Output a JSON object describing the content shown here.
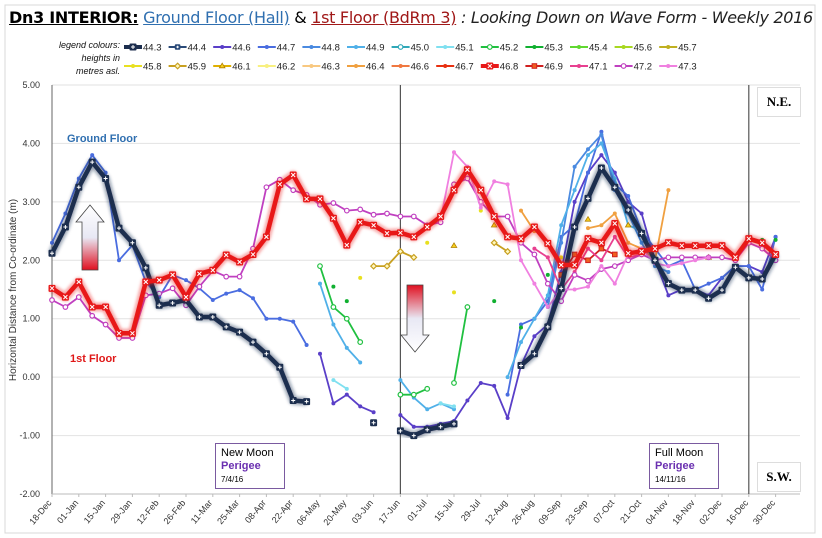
{
  "title": {
    "part1": "Dn3 INTERIOR:",
    "part2": "Ground Floor (Hall)",
    "part3": "&",
    "part4": "1st Floor (BdRm 3)",
    "part5": ": Looking Down on Wave Form - Weekly 2016"
  },
  "legend_caption": [
    "legend colours:",
    "heights in",
    "metres asl."
  ],
  "annotations": {
    "ground_floor": "Ground Floor",
    "first_floor": "1st Floor",
    "ne": "N.E.",
    "sw": "S.W.",
    "new_moon": {
      "line1": "New Moon",
      "line2": "Perigee",
      "line3": "7/4/16"
    },
    "full_moon": {
      "line1": "Full Moon",
      "line2": "Perigee",
      "line3": "14/11/16"
    }
  },
  "chart_data": {
    "type": "line",
    "title": "Dn3 INTERIOR: Ground Floor (Hall) & 1st Floor (BdRm 3) : Looking Down on Wave Form - Weekly 2016",
    "xlabel": "",
    "ylabel": "Horizontal Distance from Co-ordinate (m)",
    "ylim": [
      -2,
      5
    ],
    "yticks": [
      "5.00",
      "4.00",
      "3.00",
      "2.00",
      "1.00",
      "0.00",
      "-1.00",
      "-2.00"
    ],
    "ytick_values": [
      5,
      4,
      3,
      2,
      1,
      0,
      -1,
      -2
    ],
    "x_unit": "week index (weekly from 18-Dec-2015)",
    "xticks": [
      "18-Dec",
      "01-Jan",
      "15-Jan",
      "29-Jan",
      "12-Feb",
      "26-Feb",
      "11-Mar",
      "25-Mar",
      "08-Apr",
      "22-Apr",
      "06-May",
      "20-May",
      "03-Jun",
      "17-Jun",
      "01-Jul",
      "15-Jul",
      "29-Jul",
      "12-Aug",
      "26-Aug",
      "09-Sep",
      "23-Sep",
      "07-Oct",
      "21-Oct",
      "04-Nov",
      "18-Nov",
      "02-Dec",
      "16-Dec",
      "30-Dec"
    ],
    "xtick_step_weeks": 2,
    "weeks": 55,
    "vertical_markers_week": [
      26,
      52
    ],
    "grid": true,
    "series": [
      {
        "name": "44.3",
        "color": "#1c2e4e",
        "marker": "plus",
        "main": true,
        "values": [
          2.12,
          2.57,
          3.25,
          3.68,
          3.4,
          2.55,
          2.3,
          1.87,
          1.23,
          1.27,
          1.32,
          1.03,
          1.03,
          0.86,
          0.77,
          0.6,
          0.4,
          0.17,
          -0.4,
          -0.42,
          null,
          null,
          null,
          null,
          -0.78,
          null,
          -0.92,
          -1.0,
          -0.9,
          -0.85,
          -0.8,
          null,
          null,
          null,
          null,
          0.2,
          0.4,
          0.86,
          1.52,
          2.57,
          3.06,
          3.58,
          3.25,
          2.86,
          2.46,
          2.0,
          1.6,
          1.49,
          1.49,
          1.35,
          1.49,
          1.88,
          1.7,
          1.68,
          2.1
        ]
      },
      {
        "name": "44.4",
        "color": "#2a4a78",
        "marker": "plus",
        "points": []
      },
      {
        "name": "44.6",
        "color": "#5a3fc8",
        "marker": "circle",
        "values": [
          null,
          null,
          null,
          null,
          null,
          null,
          null,
          null,
          null,
          null,
          null,
          null,
          null,
          null,
          null,
          null,
          null,
          null,
          null,
          null,
          0.4,
          -0.45,
          -0.3,
          -0.5,
          -0.6,
          null,
          -0.65,
          -0.85,
          -0.85,
          -0.8,
          -0.75,
          -0.4,
          -0.1,
          -0.15,
          -0.7,
          0.2,
          0.7,
          0.9,
          1.8,
          3.0,
          3.5,
          3.8,
          3.5,
          3.0,
          2.8,
          2.0,
          1.4,
          1.5,
          1.5,
          1.4,
          1.7,
          1.9,
          1.9,
          1.8,
          2.4
        ]
      },
      {
        "name": "44.7",
        "color": "#4a6de0",
        "marker": "circle",
        "values": [
          2.3,
          2.8,
          3.4,
          3.8,
          3.5,
          2.0,
          2.26,
          1.63,
          1.37,
          1.75,
          1.66,
          1.52,
          1.32,
          1.43,
          1.49,
          1.35,
          1.0,
          1.0,
          0.95,
          0.55,
          null,
          null,
          null,
          null,
          null,
          null,
          null,
          null,
          null,
          null,
          null,
          null,
          null,
          null,
          -0.3,
          0.9,
          1.0,
          1.3,
          2.4,
          2.6,
          3.5,
          4.2,
          3.3,
          3.1,
          2.5,
          2.2,
          1.9,
          2.0,
          1.5,
          1.6,
          1.7,
          1.9,
          1.9,
          1.5,
          2.4
        ]
      },
      {
        "name": "44.8",
        "color": "#4a8ae0",
        "marker": "circle",
        "points": [
          [
            37,
            1.2
          ],
          [
            38,
            2.3
          ],
          [
            39,
            3.6
          ],
          [
            40,
            3.9
          ],
          [
            41,
            4.15
          ],
          [
            42,
            3.2
          ],
          [
            43,
            2.8
          ],
          [
            44,
            2.3
          ],
          [
            45,
            1.9
          ],
          [
            46,
            1.8
          ]
        ]
      },
      {
        "name": "44.9",
        "color": "#50b0e8",
        "marker": "circle",
        "points": [
          [
            20,
            1.6
          ],
          [
            21,
            0.9
          ],
          [
            22,
            0.5
          ],
          [
            23,
            0.25
          ],
          [
            26,
            -0.05
          ],
          [
            27,
            -0.35
          ],
          [
            28,
            -0.55
          ],
          [
            29,
            -0.45
          ],
          [
            30,
            -0.55
          ],
          [
            34,
            0.0
          ],
          [
            35,
            0.6
          ],
          [
            36,
            1.0
          ],
          [
            37,
            1.4
          ],
          [
            38,
            2.6
          ],
          [
            39,
            3.2
          ],
          [
            40,
            3.8
          ],
          [
            41,
            4.0
          ],
          [
            42,
            3.4
          ],
          [
            43,
            2.6
          ],
          [
            44,
            2.5
          ]
        ]
      },
      {
        "name": "45.0",
        "color": "#30a8b8",
        "marker": "open-circle",
        "points": []
      },
      {
        "name": "45.1",
        "color": "#80e0f0",
        "marker": "circle",
        "points": [
          [
            21,
            -0.05
          ],
          [
            22,
            -0.2
          ],
          [
            29,
            -0.45
          ],
          [
            30,
            -0.5
          ]
        ]
      },
      {
        "name": "45.2",
        "color": "#20c040",
        "marker": "open-circle",
        "points": [
          [
            20,
            1.9
          ],
          [
            21,
            1.2
          ],
          [
            22,
            1.0
          ],
          [
            23,
            0.6
          ],
          [
            26,
            -0.3
          ],
          [
            27,
            -0.3
          ],
          [
            28,
            -0.2
          ],
          [
            30,
            -0.1
          ],
          [
            31,
            1.2
          ]
        ]
      },
      {
        "name": "45.3",
        "color": "#10b030",
        "marker": "circle",
        "dots": true,
        "points": [
          [
            21,
            1.55
          ],
          [
            22,
            1.3
          ],
          [
            33,
            1.3
          ],
          [
            35,
            0.85
          ],
          [
            37,
            1.75
          ],
          [
            53,
            2.35
          ],
          [
            54,
            2.35
          ]
        ]
      },
      {
        "name": "45.4",
        "color": "#60d830",
        "marker": "circle",
        "points": []
      },
      {
        "name": "45.6",
        "color": "#a8d820",
        "marker": "circle",
        "points": []
      },
      {
        "name": "45.7",
        "color": "#c0b020",
        "marker": "circle",
        "points": []
      },
      {
        "name": "45.8",
        "color": "#e8e020",
        "marker": "circle",
        "dots": true,
        "points": [
          [
            23,
            1.7
          ],
          [
            28,
            2.3
          ],
          [
            30,
            1.45
          ],
          [
            32,
            2.85
          ],
          [
            38,
            2.05
          ],
          [
            44,
            2.1
          ]
        ]
      },
      {
        "name": "45.9",
        "color": "#c8a020",
        "marker": "diamond",
        "points": [
          [
            24,
            1.9
          ],
          [
            25,
            1.9
          ],
          [
            26,
            2.15
          ],
          [
            27,
            2.05
          ],
          [
            33,
            2.3
          ],
          [
            34,
            2.15
          ]
        ]
      },
      {
        "name": "46.1",
        "color": "#e0b000",
        "marker": "triangle",
        "dots": true,
        "points": [
          [
            30,
            2.25
          ],
          [
            33,
            2.6
          ],
          [
            40,
            2.7
          ],
          [
            43,
            2.6
          ],
          [
            49,
            2.05
          ]
        ]
      },
      {
        "name": "46.2",
        "color": "#f8f080",
        "marker": "circle",
        "points": []
      },
      {
        "name": "46.3",
        "color": "#f8c880",
        "marker": "circle",
        "points": []
      },
      {
        "name": "46.4",
        "color": "#f0a040",
        "marker": "circle",
        "points": [
          [
            35,
            2.85
          ],
          [
            36,
            2.5
          ],
          [
            40,
            2.55
          ],
          [
            41,
            2.6
          ],
          [
            42,
            2.8
          ],
          [
            43,
            2.3
          ],
          [
            44,
            2.2
          ],
          [
            45,
            2.0
          ],
          [
            46,
            3.2
          ]
        ]
      },
      {
        "name": "46.6",
        "color": "#f07840",
        "marker": "circle",
        "points": []
      },
      {
        "name": "46.7",
        "color": "#e83010",
        "marker": "circle",
        "points": []
      },
      {
        "name": "46.8",
        "color": "#e81818",
        "marker": "x",
        "main": true,
        "values": [
          1.52,
          1.37,
          1.63,
          1.2,
          1.2,
          0.75,
          0.75,
          1.63,
          1.66,
          1.75,
          1.37,
          1.77,
          1.83,
          2.09,
          1.97,
          2.1,
          2.4,
          3.3,
          3.46,
          3.05,
          3.05,
          2.72,
          2.26,
          2.65,
          2.6,
          2.46,
          2.47,
          2.4,
          2.57,
          2.75,
          3.2,
          3.55,
          3.2,
          2.75,
          2.4,
          2.37,
          2.57,
          2.29,
          1.92,
          1.92,
          2.37,
          2.3,
          2.63,
          2.12,
          2.15,
          2.2,
          2.3,
          2.25,
          2.25,
          2.25,
          2.25,
          2.05,
          2.37,
          2.3,
          2.1
        ]
      },
      {
        "name": "46.9",
        "color": "#d02020",
        "marker": "square",
        "points": [
          [
            38,
            1.75
          ],
          [
            39,
            2.1
          ],
          [
            40,
            2.0
          ],
          [
            41,
            2.2
          ],
          [
            42,
            2.1
          ]
        ]
      },
      {
        "name": "47.1",
        "color": "#e84090",
        "marker": "circle",
        "points": [
          [
            36,
            2.2
          ],
          [
            37,
            2.05
          ],
          [
            38,
            1.5
          ],
          [
            39,
            1.8
          ],
          [
            40,
            2.2
          ],
          [
            41,
            2.0
          ],
          [
            42,
            2.4
          ],
          [
            43,
            2.05
          ],
          [
            44,
            2.1
          ],
          [
            45,
            2.2
          ]
        ]
      },
      {
        "name": "47.2",
        "color": "#c040c0",
        "marker": "open-circle",
        "values": [
          1.32,
          1.2,
          1.37,
          1.05,
          0.9,
          0.67,
          0.67,
          1.4,
          1.43,
          1.52,
          1.23,
          1.55,
          1.82,
          1.72,
          1.72,
          2.2,
          3.25,
          3.38,
          3.2,
          3.12,
          2.95,
          2.98,
          2.85,
          2.87,
          2.78,
          2.8,
          2.75,
          2.75,
          2.6,
          2.65,
          3.3,
          3.4,
          3.0,
          2.75,
          2.75,
          2.3,
          2.1,
          1.6,
          1.3,
          1.75,
          1.65,
          1.85,
          1.9,
          2.0,
          2.1,
          2.0,
          2.05,
          2.05,
          2.05,
          2.05,
          2.05,
          2.0,
          2.3,
          2.2,
          2.0
        ]
      },
      {
        "name": "47.3",
        "color": "#f080e0",
        "marker": "circle",
        "points": [
          [
            29,
            2.7
          ],
          [
            30,
            3.85
          ],
          [
            31,
            3.6
          ],
          [
            32,
            2.9
          ],
          [
            33,
            3.35
          ],
          [
            34,
            3.3
          ],
          [
            35,
            2.0
          ],
          [
            36,
            1.6
          ],
          [
            37,
            1.2
          ],
          [
            38,
            1.5
          ],
          [
            39,
            1.5
          ],
          [
            40,
            1.55
          ],
          [
            41,
            1.9
          ],
          [
            42,
            1.6
          ],
          [
            43,
            2.1
          ],
          [
            44,
            2.2
          ],
          [
            45,
            1.95
          ],
          [
            46,
            1.9
          ],
          [
            47,
            1.95
          ],
          [
            48,
            2.0
          ],
          [
            49,
            2.05
          ]
        ]
      }
    ]
  }
}
